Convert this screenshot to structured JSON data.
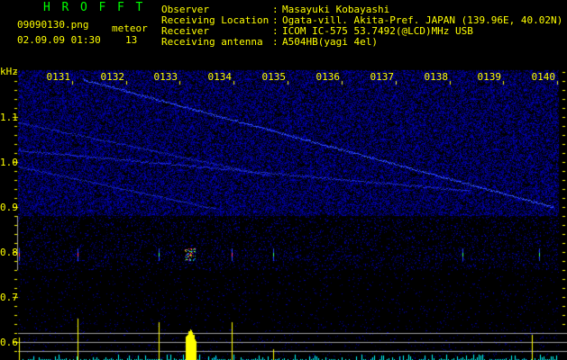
{
  "header": {
    "app_title": "HROFFT",
    "filename": "09090130.png",
    "datetime": "02.09.09 01:30",
    "meteor_label": "meteor",
    "meteor_count": "13"
  },
  "info": [
    {
      "label": "Observer",
      "value": "Masayuki Kobayashi"
    },
    {
      "label": "Receiving Location",
      "value": "Ogata-vill. Akita-Pref. JAPAN (139.96E, 40.02N)"
    },
    {
      "label": "Receiver",
      "value": "ICOM IC-575 53.7492(@LCD)MHz USB"
    },
    {
      "label": "Receiving antenna",
      "value": "A504HB(yagi 4el)"
    }
  ],
  "spectrogram": {
    "y_unit": "kHz",
    "y_labels": [
      "1.1",
      "1.0",
      "0.9",
      "0.8",
      "0.7",
      "0.6"
    ],
    "time_labels": [
      "0131",
      "0132",
      "0133",
      "0134",
      "0135",
      "0136",
      "0137",
      "0138",
      "0139",
      "0140"
    ],
    "colors": {
      "text": "#ffff00",
      "title": "#00ff00",
      "noise": "#0000ff",
      "count_bars": "#00ffff"
    }
  }
}
